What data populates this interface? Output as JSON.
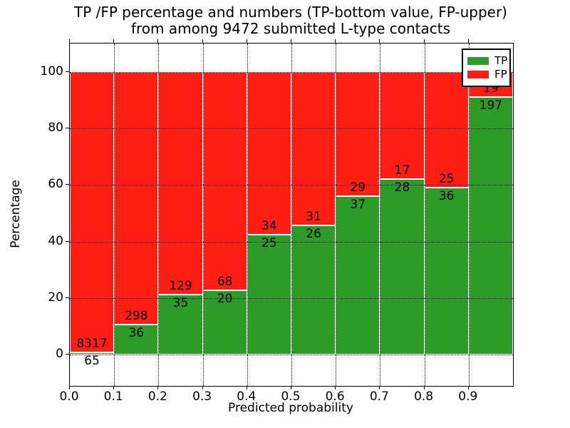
{
  "title": {
    "line1": "TP /FP percentage and numbers (TP-bottom value, FP-upper)",
    "line2": "from among 9472 submitted L-type contacts"
  },
  "legend": {
    "position": "upper right",
    "items": [
      {
        "label": "TP",
        "color": "#2d9b28"
      },
      {
        "label": "FP",
        "color": "#ff1e14"
      }
    ]
  },
  "colors": {
    "tp_green": "#2d9b28",
    "fp_red": "#ff1e14",
    "background": "#ffffff",
    "grid": "#000000",
    "bar_edge": "#ffffff"
  },
  "chart_data": {
    "type": "bar",
    "stacked": true,
    "normalized_to_percent": true,
    "title": "TP /FP percentage and numbers (TP-bottom value, FP-upper) from among 9472 submitted L-type contacts",
    "xlabel": "Predicted probability",
    "ylabel": "Percentage",
    "total_submitted_contacts": 9472,
    "bin_edges": [
      0.0,
      0.1,
      0.2,
      0.3,
      0.4,
      0.5,
      0.6,
      0.7,
      0.8,
      0.9,
      1.0
    ],
    "x_tick_labels": [
      "0.0",
      "0.1",
      "0.2",
      "0.3",
      "0.4",
      "0.5",
      "0.6",
      "0.7",
      "0.8",
      "0.9"
    ],
    "y_ticks": [
      0,
      20,
      40,
      60,
      80,
      100
    ],
    "xlim": [
      0.0,
      1.0
    ],
    "ylim": [
      -11,
      110
    ],
    "grid": "dotted",
    "legend_position": "upper right",
    "series": [
      {
        "name": "TP",
        "color": "#2d9b28",
        "counts": [
          65,
          36,
          35,
          20,
          25,
          26,
          37,
          28,
          36,
          197
        ],
        "pct": [
          0.78,
          10.78,
          21.34,
          22.73,
          42.37,
          45.61,
          56.06,
          62.22,
          59.02,
          91.2
        ]
      },
      {
        "name": "FP",
        "color": "#ff1e14",
        "counts": [
          8317,
          298,
          129,
          68,
          34,
          31,
          29,
          17,
          25,
          19
        ],
        "pct": [
          99.22,
          89.22,
          78.66,
          77.27,
          57.63,
          54.39,
          43.94,
          37.78,
          40.98,
          8.8
        ]
      }
    ]
  }
}
